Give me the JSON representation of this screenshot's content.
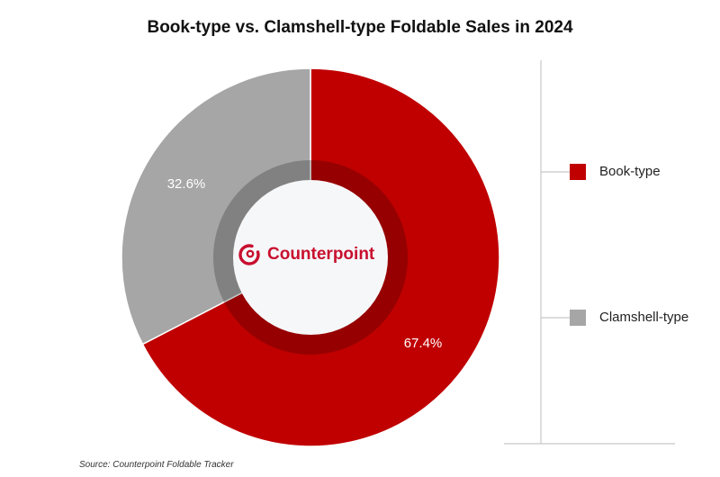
{
  "chart_data": {
    "type": "pie",
    "title": "Book-type vs. Clamshell-type Foldable Sales in 2024",
    "categories": [
      "Book-type",
      "Clamshell-type"
    ],
    "values": [
      67.4,
      32.6
    ],
    "labels": [
      "67.4%",
      "32.6%"
    ],
    "colors": [
      "#c00000",
      "#a6a6a6"
    ],
    "legend_position": "right",
    "donut": true
  },
  "logo_text": "Counterpoint",
  "source": "Source: Counterpoint Foldable Tracker"
}
